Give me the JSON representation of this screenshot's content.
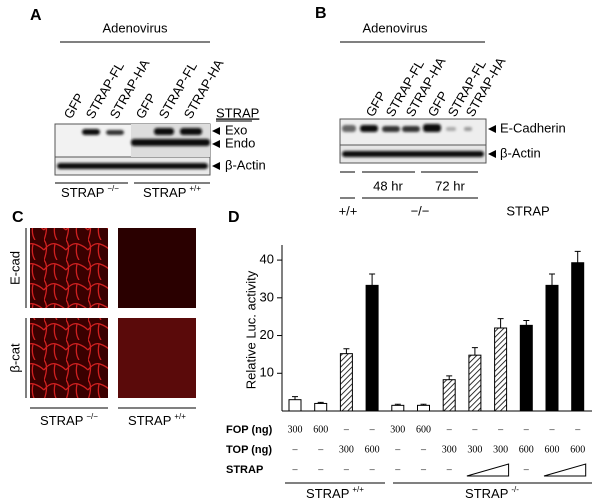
{
  "panel_a": {
    "letter": "A",
    "header": "Adenovirus",
    "lanes": [
      "GFP",
      "STRAP-FL",
      "STRAP-HA",
      "GFP",
      "STRAP-FL",
      "STRAP-HA"
    ],
    "key": "STRAP",
    "bands": [
      "Exo",
      "Endo",
      "β-Actin"
    ],
    "groups": [
      {
        "text": "STRAP",
        "sup": "−/−"
      },
      {
        "text": "STRAP",
        "sup": "+/+"
      }
    ]
  },
  "panel_b": {
    "letter": "B",
    "header": "Adenovirus",
    "lanes": [
      "GFP",
      "STRAP-FL",
      "STRAP-HA",
      "GFP",
      "STRAP-FL",
      "STRAP-HA"
    ],
    "bands": [
      "E-Cadherin",
      "β-Actin"
    ],
    "times": [
      "48 hr",
      "72 hr"
    ],
    "genotypes": [
      "+/+",
      "−/−"
    ],
    "genotype_label": "STRAP"
  },
  "panel_c": {
    "letter": "C",
    "rows": [
      "E-cad",
      "β-cat"
    ],
    "groups": [
      {
        "text": "STRAP",
        "sup": "−/−"
      },
      {
        "text": "STRAP",
        "sup": "+/+"
      }
    ]
  },
  "chart_data": {
    "type": "bar",
    "letter": "D",
    "y_label": "Relative Luc. activity",
    "ylim": [
      0,
      44
    ],
    "yticks": [
      10,
      20,
      30,
      40
    ],
    "values": [
      3,
      2,
      15.2,
      33.3,
      1.5,
      1.5,
      8.3,
      14.8,
      22,
      22.7,
      33.3,
      39.3
    ],
    "errors": [
      0.8,
      0.3,
      1.3,
      3,
      0.3,
      0.3,
      1,
      2,
      2.5,
      1.3,
      3,
      3
    ],
    "fills": [
      "white",
      "white",
      "hatched",
      "black",
      "white",
      "white",
      "hatched",
      "hatched",
      "hatched",
      "black",
      "black",
      "black"
    ],
    "row_labels": [
      "FOP (ng)",
      "TOP (ng)",
      "STRAP"
    ],
    "fop": [
      "300",
      "600",
      "–",
      "–",
      "300",
      "600",
      "–",
      "–",
      "–",
      "–",
      "–",
      "–"
    ],
    "top": [
      "–",
      "–",
      "300",
      "600",
      "–",
      "–",
      "300",
      "300",
      "300",
      "600",
      "600",
      "600"
    ],
    "strap": [
      "–",
      "–",
      "–",
      "–",
      "–",
      "–",
      "–",
      null,
      null,
      "–",
      null,
      null
    ],
    "groups": [
      {
        "text": "STRAP",
        "sup": "+/+"
      },
      {
        "text": "STRAP",
        "sup": "-/-"
      }
    ]
  }
}
